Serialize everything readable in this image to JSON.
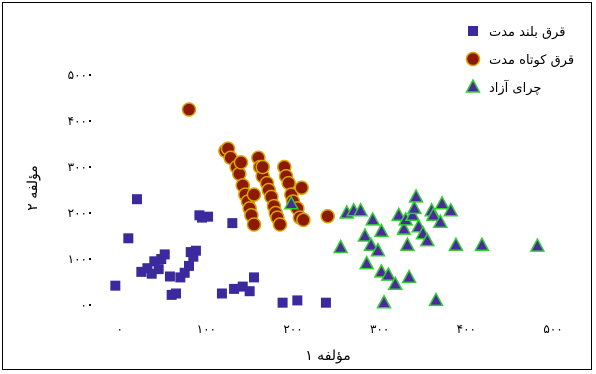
{
  "chart_data": {
    "type": "scatter",
    "title": "",
    "xlabel": "مؤلفه ۱",
    "ylabel": "مؤلفه ۲",
    "xlim": [
      -10,
      500
    ],
    "ylim": [
      0,
      500
    ],
    "x_ticks": [
      {
        "value": 0,
        "label": "۰"
      },
      {
        "value": 100,
        "label": "۱۰۰"
      },
      {
        "value": 200,
        "label": "۲۰۰"
      },
      {
        "value": 300,
        "label": "۳۰۰"
      },
      {
        "value": 400,
        "label": "۴۰۰"
      },
      {
        "value": 500,
        "label": "۵۰۰"
      }
    ],
    "y_ticks": [
      {
        "value": 0,
        "label": "۰"
      },
      {
        "value": 100,
        "label": "۱۰۰"
      },
      {
        "value": 200,
        "label": "۲۰۰"
      },
      {
        "value": 300,
        "label": "۳۰۰"
      },
      {
        "value": 400,
        "label": "۴۰۰"
      },
      {
        "value": 500,
        "label": "۵۰۰"
      }
    ],
    "grid": false,
    "legend_position": "top-right",
    "series": [
      {
        "name": "قرق بلند مدت",
        "marker": "square",
        "color": "#3a2a9e",
        "points": [
          [
            -5,
            42
          ],
          [
            10,
            145
          ],
          [
            20,
            230
          ],
          [
            25,
            72
          ],
          [
            32,
            80
          ],
          [
            37,
            68
          ],
          [
            40,
            95
          ],
          [
            45,
            78
          ],
          [
            48,
            100
          ],
          [
            52,
            110
          ],
          [
            58,
            62
          ],
          [
            60,
            22
          ],
          [
            65,
            25
          ],
          [
            70,
            60
          ],
          [
            75,
            70
          ],
          [
            80,
            85
          ],
          [
            82,
            115
          ],
          [
            85,
            105
          ],
          [
            88,
            118
          ],
          [
            92,
            195
          ],
          [
            95,
            190
          ],
          [
            102,
            192
          ],
          [
            118,
            25
          ],
          [
            130,
            178
          ],
          [
            132,
            35
          ],
          [
            142,
            40
          ],
          [
            150,
            30
          ],
          [
            155,
            60
          ],
          [
            188,
            5
          ],
          [
            205,
            10
          ],
          [
            238,
            5
          ]
        ]
      },
      {
        "name": "قرق کوتاه مدت",
        "marker": "circle",
        "color": "#8b1a00",
        "points": [
          [
            80,
            425
          ],
          [
            122,
            335
          ],
          [
            125,
            340
          ],
          [
            128,
            320
          ],
          [
            135,
            300
          ],
          [
            138,
            285
          ],
          [
            142,
            260
          ],
          [
            145,
            240
          ],
          [
            148,
            225
          ],
          [
            150,
            210
          ],
          [
            152,
            195
          ],
          [
            155,
            175
          ],
          [
            160,
            320
          ],
          [
            162,
            300
          ],
          [
            165,
            280
          ],
          [
            170,
            265
          ],
          [
            172,
            250
          ],
          [
            175,
            235
          ],
          [
            178,
            215
          ],
          [
            180,
            200
          ],
          [
            182,
            190
          ],
          [
            185,
            175
          ],
          [
            190,
            300
          ],
          [
            192,
            280
          ],
          [
            195,
            265
          ],
          [
            198,
            240
          ],
          [
            200,
            225
          ],
          [
            205,
            210
          ],
          [
            208,
            190
          ],
          [
            212,
            185
          ],
          [
            140,
            310
          ],
          [
            155,
            240
          ],
          [
            165,
            300
          ],
          [
            210,
            255
          ],
          [
            240,
            193
          ]
        ]
      },
      {
        "name": "چرای آزاد",
        "marker": "triangle",
        "color": "#4b2a9e",
        "points": [
          [
            198,
            220
          ],
          [
            255,
            125
          ],
          [
            262,
            200
          ],
          [
            270,
            205
          ],
          [
            278,
            205
          ],
          [
            283,
            150
          ],
          [
            285,
            90
          ],
          [
            290,
            130
          ],
          [
            292,
            185
          ],
          [
            298,
            118
          ],
          [
            302,
            72
          ],
          [
            310,
            65
          ],
          [
            305,
            5
          ],
          [
            318,
            45
          ],
          [
            322,
            195
          ],
          [
            328,
            165
          ],
          [
            330,
            185
          ],
          [
            332,
            130
          ],
          [
            338,
            195
          ],
          [
            340,
            210
          ],
          [
            342,
            235
          ],
          [
            345,
            170
          ],
          [
            350,
            155
          ],
          [
            355,
            140
          ],
          [
            360,
            205
          ],
          [
            362,
            195
          ],
          [
            365,
            10
          ],
          [
            372,
            220
          ],
          [
            382,
            205
          ],
          [
            388,
            130
          ],
          [
            302,
            160
          ],
          [
            334,
            60
          ],
          [
            370,
            180
          ],
          [
            418,
            130
          ],
          [
            482,
            128
          ]
        ]
      }
    ]
  }
}
